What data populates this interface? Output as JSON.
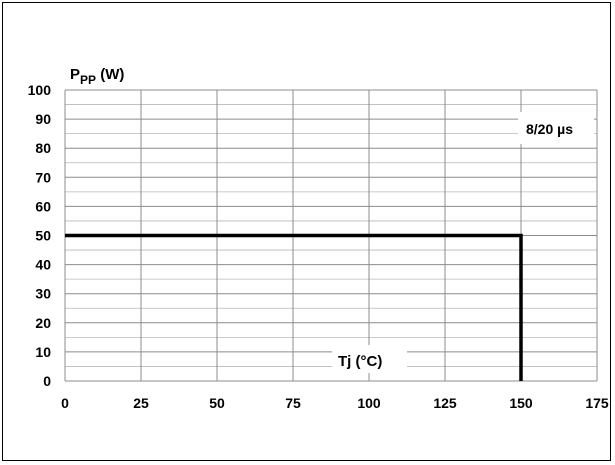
{
  "chart_data": {
    "type": "line",
    "ylabel_main": "P",
    "ylabel_sub": "PP",
    "ylabel_unit": " (W)",
    "xlabel": "Tj (°C)",
    "annotation": "8/20 µs",
    "xlim": [
      0,
      175
    ],
    "ylim": [
      0,
      100
    ],
    "x_ticks": [
      0,
      25,
      50,
      75,
      100,
      125,
      150,
      175
    ],
    "y_ticks": [
      0,
      10,
      20,
      30,
      40,
      50,
      60,
      70,
      80,
      90,
      100
    ],
    "grid": true,
    "series": [
      {
        "x": [
          0,
          150,
          150
        ],
        "y": [
          50,
          50,
          0
        ],
        "color": "#000000"
      }
    ]
  }
}
